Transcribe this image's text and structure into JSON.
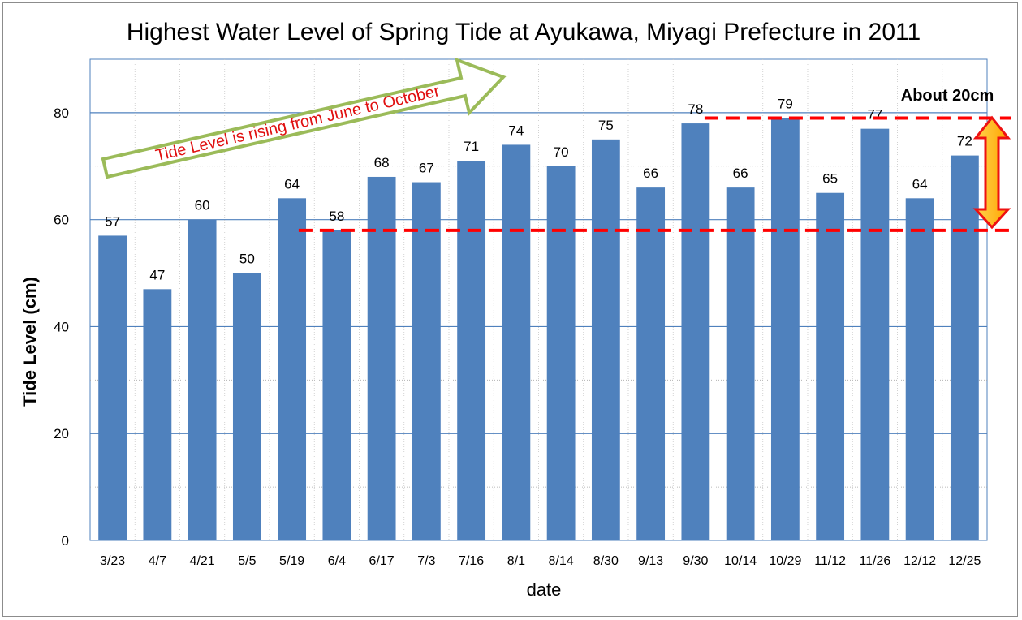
{
  "chart_data": {
    "type": "bar",
    "title": "Highest Water Level of Spring Tide at Ayukawa, Miyagi Prefecture in 2011",
    "xlabel": "date",
    "ylabel": "Tide Level (cm)",
    "ylim": [
      0,
      90
    ],
    "yticks": [
      0,
      20,
      40,
      60,
      80
    ],
    "grid": true,
    "categories": [
      "3/23",
      "4/7",
      "4/21",
      "5/5",
      "5/19",
      "6/4",
      "6/17",
      "7/3",
      "7/16",
      "8/1",
      "8/14",
      "8/30",
      "9/13",
      "9/30",
      "10/14",
      "10/29",
      "11/12",
      "11/26",
      "12/12",
      "12/25"
    ],
    "values": [
      57,
      47,
      60,
      50,
      64,
      58,
      68,
      67,
      71,
      74,
      70,
      75,
      66,
      78,
      66,
      79,
      65,
      77,
      64,
      72
    ],
    "bar_color": "#4f81bd",
    "annotations": {
      "trend_arrow_text": "Tide Level is rising from June to October",
      "range_label": "About 20cm",
      "lower_reference": 58,
      "upper_reference": 79
    }
  }
}
